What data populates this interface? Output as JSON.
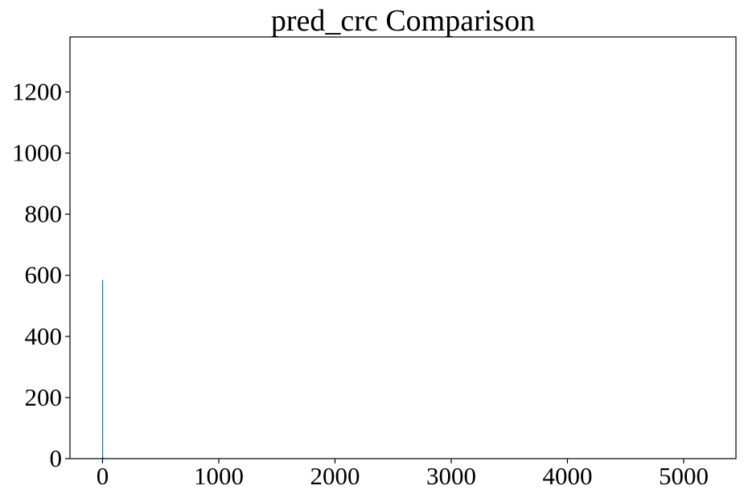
{
  "chart_data": {
    "type": "bar",
    "title": "pred_crc Comparison",
    "xlabel": "",
    "ylabel": "",
    "xlim": [
      -280,
      5450
    ],
    "ylim": [
      0,
      1380
    ],
    "x_ticks": [
      0,
      1000,
      2000,
      3000,
      4000,
      5000
    ],
    "y_ticks": [
      0,
      200,
      400,
      600,
      800,
      1000,
      1200
    ],
    "x_tick_labels": [
      "0",
      "1000",
      "2000",
      "3000",
      "4000",
      "5000"
    ],
    "y_tick_labels": [
      "0",
      "200",
      "400",
      "600",
      "800",
      "1000",
      "1200"
    ],
    "grid": false,
    "legend": "none",
    "series": [
      {
        "color": "#1f77b4",
        "bars": [
          {
            "x": 0,
            "value": 585
          },
          {
            "x": 8,
            "value": 4
          }
        ]
      }
    ]
  }
}
